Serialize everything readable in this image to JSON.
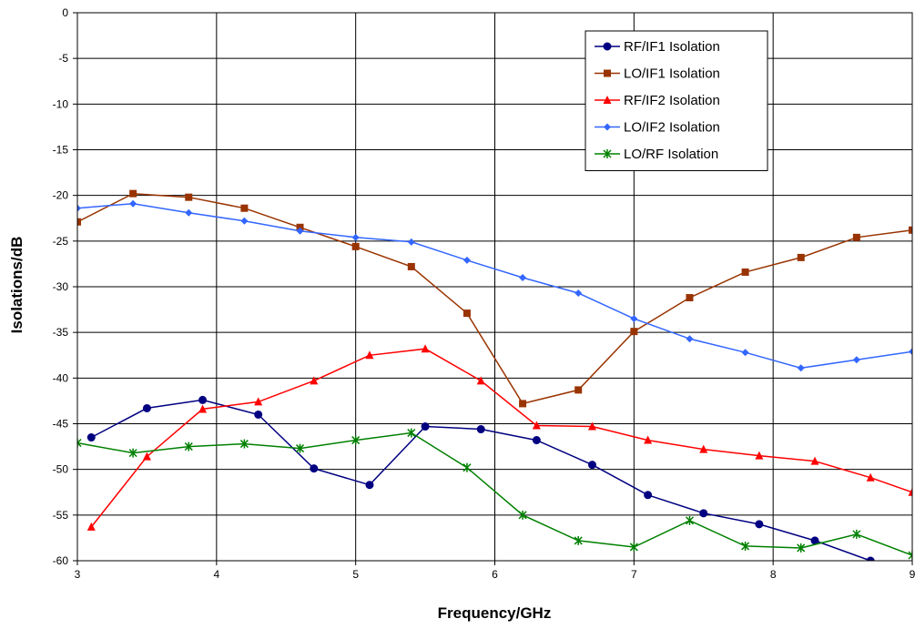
{
  "chart_data": {
    "type": "line",
    "title": "",
    "xlabel": "Frequency/GHz",
    "ylabel": "Isolations/dB",
    "xlim": [
      3,
      9
    ],
    "ylim": [
      -60,
      0
    ],
    "xticks": [
      "3",
      "4",
      "5",
      "6",
      "7",
      "8",
      "9"
    ],
    "yticks": [
      "0",
      "-5",
      "-10",
      "-15",
      "-20",
      "-25",
      "-30",
      "-35",
      "-40",
      "-45",
      "-50",
      "-55",
      "-60"
    ],
    "grid": true,
    "legend_position": "top-right",
    "series": [
      {
        "name": "RF/IF1 Isolation",
        "color": "#000080",
        "marker": "circle",
        "points": [
          [
            3.1,
            -46.5
          ],
          [
            3.5,
            -43.3
          ],
          [
            3.9,
            -42.4
          ],
          [
            4.3,
            -44.0
          ],
          [
            4.7,
            -49.9
          ],
          [
            5.1,
            -51.7
          ],
          [
            5.5,
            -45.3
          ],
          [
            5.9,
            -45.6
          ],
          [
            6.3,
            -46.8
          ],
          [
            6.7,
            -49.5
          ],
          [
            7.1,
            -52.8
          ],
          [
            7.5,
            -54.8
          ],
          [
            7.9,
            -56.0
          ],
          [
            8.3,
            -57.8
          ],
          [
            8.7,
            -60.0
          ],
          [
            9.0,
            -61.5
          ]
        ]
      },
      {
        "name": "LO/IF1 Isolation",
        "color": "#993300",
        "marker": "square",
        "points": [
          [
            3.0,
            -22.9
          ],
          [
            3.4,
            -19.8
          ],
          [
            3.8,
            -20.2
          ],
          [
            4.2,
            -21.4
          ],
          [
            4.6,
            -23.5
          ],
          [
            5.0,
            -25.6
          ],
          [
            5.4,
            -27.8
          ],
          [
            5.8,
            -32.9
          ],
          [
            6.2,
            -42.8
          ],
          [
            6.6,
            -41.3
          ],
          [
            7.0,
            -34.9
          ],
          [
            7.4,
            -31.2
          ],
          [
            7.8,
            -28.4
          ],
          [
            8.2,
            -26.8
          ],
          [
            8.6,
            -24.6
          ],
          [
            9.0,
            -23.8
          ]
        ]
      },
      {
        "name": "RF/IF2 Isolation",
        "color": "#ff0000",
        "marker": "triangle",
        "points": [
          [
            3.1,
            -56.3
          ],
          [
            3.5,
            -48.6
          ],
          [
            3.9,
            -43.4
          ],
          [
            4.3,
            -42.6
          ],
          [
            4.7,
            -40.3
          ],
          [
            5.1,
            -37.5
          ],
          [
            5.5,
            -36.8
          ],
          [
            5.9,
            -40.3
          ],
          [
            6.3,
            -45.2
          ],
          [
            6.7,
            -45.3
          ],
          [
            7.1,
            -46.8
          ],
          [
            7.5,
            -47.8
          ],
          [
            7.9,
            -48.5
          ],
          [
            8.3,
            -49.1
          ],
          [
            8.7,
            -50.9
          ],
          [
            9.0,
            -52.5
          ]
        ]
      },
      {
        "name": "LO/IF2 Isolation",
        "color": "#3366ff",
        "marker": "diamond",
        "points": [
          [
            3.0,
            -21.4
          ],
          [
            3.4,
            -20.9
          ],
          [
            3.8,
            -21.9
          ],
          [
            4.2,
            -22.8
          ],
          [
            4.6,
            -23.9
          ],
          [
            5.0,
            -24.6
          ],
          [
            5.4,
            -25.1
          ],
          [
            5.8,
            -27.1
          ],
          [
            6.2,
            -29.0
          ],
          [
            6.6,
            -30.7
          ],
          [
            7.0,
            -33.5
          ],
          [
            7.4,
            -35.7
          ],
          [
            7.8,
            -37.2
          ],
          [
            8.2,
            -38.9
          ],
          [
            8.6,
            -38.0
          ],
          [
            9.0,
            -37.1
          ]
        ]
      },
      {
        "name": "LO/RF Isolation",
        "color": "#008000",
        "marker": "star",
        "points": [
          [
            3.0,
            -47.1
          ],
          [
            3.4,
            -48.2
          ],
          [
            3.8,
            -47.5
          ],
          [
            4.2,
            -47.2
          ],
          [
            4.6,
            -47.7
          ],
          [
            5.0,
            -46.8
          ],
          [
            5.4,
            -46.0
          ],
          [
            5.8,
            -49.8
          ],
          [
            6.2,
            -55.0
          ],
          [
            6.6,
            -57.8
          ],
          [
            7.0,
            -58.5
          ],
          [
            7.4,
            -55.6
          ],
          [
            7.8,
            -58.4
          ],
          [
            8.2,
            -58.6
          ],
          [
            8.6,
            -57.1
          ],
          [
            9.0,
            -59.4
          ]
        ]
      }
    ]
  }
}
